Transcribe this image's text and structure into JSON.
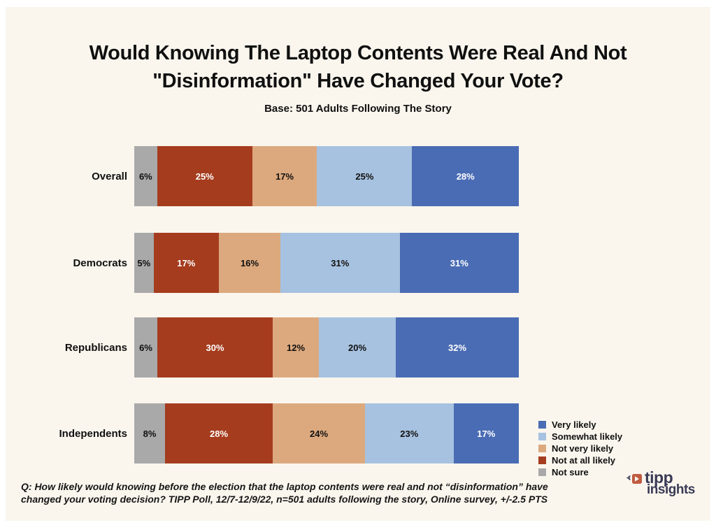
{
  "page": {
    "background": "#ffffff",
    "panel_background": "#faf6ee",
    "text_color": "#101010"
  },
  "header": {
    "title_line1": "Would Knowing The Laptop Contents Were Real And Not",
    "title_line2": "\"Disinformation\" Have Changed Your Vote?",
    "subtitle": "Base: 501 Adults Following The Story"
  },
  "chart_data": {
    "type": "bar",
    "orientation": "horizontal-stacked",
    "title": "Would Knowing The Laptop Contents Were Real And Not \"Disinformation\" Have Changed Your Vote?",
    "subtitle": "Base: 501 Adults Following The Story",
    "categories": [
      "Overall",
      "Democrats",
      "Republicans",
      "Independents"
    ],
    "series": [
      {
        "name": "Not sure",
        "color": "#a9a9a9",
        "label_color": "#101010",
        "values": [
          6,
          5,
          6,
          8
        ]
      },
      {
        "name": "Not at all likely",
        "color": "#a53c1e",
        "label_color": "#ffffff",
        "values": [
          25,
          17,
          30,
          28
        ]
      },
      {
        "name": "Not very likely",
        "color": "#dca97e",
        "label_color": "#101010",
        "values": [
          17,
          16,
          12,
          24
        ]
      },
      {
        "name": "Somewhat likely",
        "color": "#a7c2e0",
        "label_color": "#101010",
        "values": [
          25,
          31,
          20,
          23
        ]
      },
      {
        "name": "Very likely",
        "color": "#4a6cb4",
        "label_color": "#ffffff",
        "values": [
          28,
          31,
          32,
          17
        ]
      }
    ],
    "value_suffix": "%",
    "xlim": [
      0,
      100
    ],
    "grid": false,
    "legend_position": "bottom-right",
    "legend": [
      {
        "label": "Very likely",
        "color": "#4a6cb4"
      },
      {
        "label": "Somewhat likely",
        "color": "#a7c2e0"
      },
      {
        "label": "Not very likely",
        "color": "#dca97e"
      },
      {
        "label": "Not at all likely",
        "color": "#a53c1e"
      },
      {
        "label": "Not sure",
        "color": "#a9a9a9"
      }
    ]
  },
  "footer": {
    "line1": "Q: How likely would knowing before the election that the laptop contents were real and not “disinformation” have",
    "line2": "changed your voting decision? TIPP Poll, 12/7-12/9/22, n=501 adults following the story, Online survey, +/-2.5 PTS",
    "logo": {
      "text_top": "tipp",
      "text_bottom": "insights",
      "icon": "megaphone-icon",
      "accent_color": "#c05b40",
      "text_color": "#393a55"
    }
  }
}
